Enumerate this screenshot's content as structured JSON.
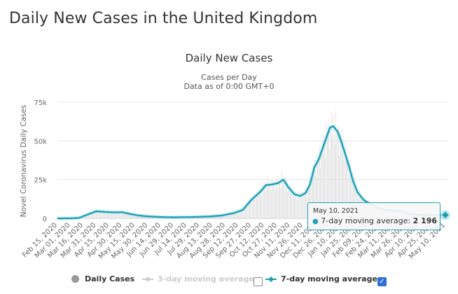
{
  "header": {
    "title": "Daily New Cases in the United Kingdom"
  },
  "chart": {
    "title": "Daily New Cases",
    "subtitle_line1": "Cases per Day",
    "subtitle_line2": "Data as of 0:00 GMT+0",
    "tooltip": {
      "date": "May 10, 2021",
      "series_label": "7-day moving average: ",
      "value": "2 196"
    },
    "legend": {
      "daily": "Daily Cases",
      "three_day": "3-day moving average",
      "seven_day": "7-day moving average",
      "three_day_checked": false,
      "seven_day_checked": true,
      "checkmark": "✓"
    }
  },
  "colors": {
    "line": "#1f9bb0",
    "bars": "#dddddd",
    "grid": "#e6e6e6",
    "checkbox": "#2f6fd6"
  },
  "chart_data": {
    "type": "line",
    "title": "Daily New Cases",
    "subtitle": "Cases per Day / Data as of 0:00 GMT+0",
    "xlabel": "",
    "ylabel": "Novel Coronavirus Daily Cases",
    "ylim": [
      0,
      75000
    ],
    "y_ticks": [
      0,
      25000,
      50000,
      75000
    ],
    "y_tick_labels": [
      "0",
      "25k",
      "50k",
      "75k"
    ],
    "grid": true,
    "legend_position": "bottom",
    "x_tick_labels": [
      "Feb 15, 2020",
      "Mar 01, 2020",
      "Mar 16, 2020",
      "Mar 31, 2020",
      "Apr 15, 2020",
      "Apr 30, 2020",
      "May 15, 2020",
      "May 30, 2020",
      "Jun 14, 2020",
      "Jun 29, 2020",
      "Jul 14, 2020",
      "Jul 29, 2020",
      "Aug 13, 2020",
      "Aug 28, 2020",
      "Sep 12, 2020",
      "Sep 27, 2020",
      "Oct 12, 2020",
      "Oct 27, 2020",
      "Nov 11, 2020",
      "Nov 26, 2020",
      "Dec 11, 2020",
      "Dec 26, 2020",
      "Jan 10, 2021",
      "Jan 25, 2021",
      "Feb 09, 2021",
      "Feb 24, 2021",
      "Mar 11, 2021",
      "Mar 26, 2021",
      "Apr 10, 2021",
      "Apr 25, 2021",
      "May 10, 2021"
    ],
    "x_days_range": [
      0,
      450
    ],
    "series": [
      {
        "name": "7-day moving average",
        "x_days": [
          0,
          15,
          25,
          35,
          45,
          55,
          65,
          75,
          85,
          95,
          105,
          115,
          125,
          135,
          145,
          160,
          175,
          190,
          205,
          215,
          225,
          235,
          242,
          250,
          256,
          262,
          268,
          275,
          282,
          288,
          293,
          298,
          303,
          310,
          316,
          320,
          325,
          329,
          333,
          338,
          343,
          348,
          355,
          362,
          370,
          380,
          390,
          400,
          410,
          420,
          430,
          440,
          450
        ],
        "values": [
          0,
          50,
          300,
          2500,
          4600,
          4200,
          3900,
          4000,
          2800,
          1800,
          1300,
          1000,
          800,
          700,
          800,
          900,
          1200,
          1800,
          3500,
          5500,
          12000,
          17000,
          21500,
          22000,
          22800,
          25000,
          20000,
          15500,
          14500,
          16500,
          22000,
          33000,
          38000,
          49000,
          58500,
          59500,
          56000,
          50000,
          43000,
          34000,
          24000,
          17000,
          12000,
          9500,
          7000,
          5500,
          5000,
          4500,
          2800,
          2300,
          2200,
          2200,
          2196
        ]
      }
    ]
  }
}
